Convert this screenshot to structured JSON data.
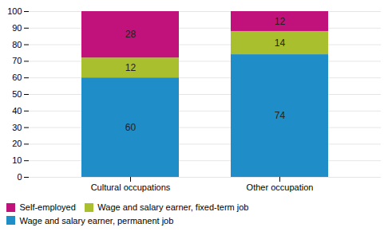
{
  "chart_data": {
    "type": "bar",
    "stacked": true,
    "categories": [
      "Cultural occupations",
      "Other occupation"
    ],
    "series": [
      {
        "name": "Wage and salary earner, permanent job",
        "color": "#1F8DC8",
        "values": [
          60,
          74
        ]
      },
      {
        "name": "Wage and salary earner, fixed-term job",
        "color": "#AABF2D",
        "values": [
          12,
          14
        ]
      },
      {
        "name": "Self-employed",
        "color": "#C0127A",
        "values": [
          28,
          12
        ]
      }
    ],
    "ylim": [
      0,
      100
    ],
    "yticks": [
      0,
      10,
      20,
      30,
      40,
      50,
      60,
      70,
      80,
      90,
      100
    ],
    "grid": true,
    "data_labels": true,
    "legend": "bottom"
  }
}
